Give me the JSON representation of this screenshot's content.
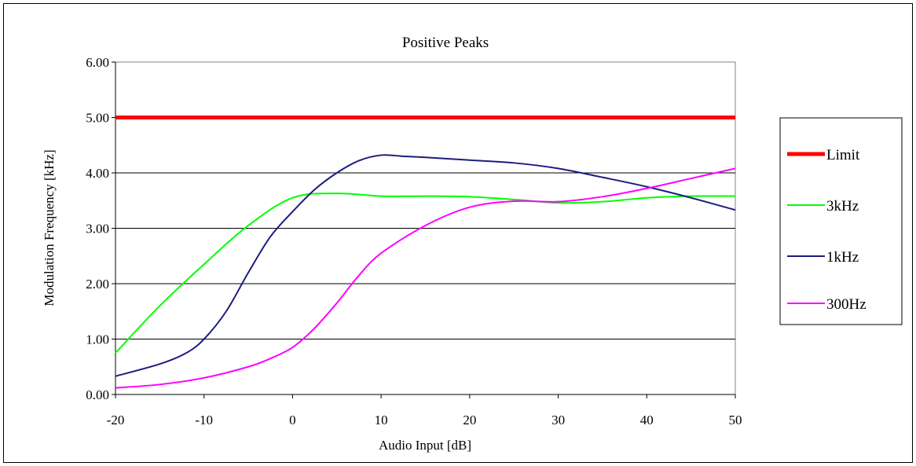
{
  "chart_data": {
    "type": "line",
    "title": "Positive Peaks",
    "xlabel": "Audio Input [dB]",
    "ylabel": "Modulation Frequency [kHz]",
    "xlim": [
      -20,
      50
    ],
    "ylim": [
      0,
      6
    ],
    "xticks": [
      -20,
      -10,
      0,
      10,
      20,
      30,
      40,
      50
    ],
    "yticks": [
      "0.00",
      "1.00",
      "2.00",
      "3.00",
      "4.00",
      "5.00",
      "6.00"
    ],
    "grid": "horizontal",
    "legend_position": "right",
    "series": [
      {
        "name": "Limit",
        "color": "#ff0000",
        "x": [
          -20,
          50
        ],
        "y": [
          5.0,
          5.0
        ]
      },
      {
        "name": "3kHz",
        "color": "#00ff00",
        "x": [
          -20,
          -15,
          -10,
          -5,
          0,
          5,
          10,
          15,
          20,
          25,
          30,
          35,
          40,
          45,
          50
        ],
        "y": [
          0.75,
          1.6,
          2.35,
          3.05,
          3.55,
          3.63,
          3.58,
          3.58,
          3.57,
          3.52,
          3.46,
          3.48,
          3.55,
          3.58,
          3.58
        ]
      },
      {
        "name": "1kHz",
        "color": "#1c1c80",
        "x": [
          -20,
          -15,
          -12,
          -10,
          -7.5,
          -5,
          -2.5,
          0,
          2.5,
          5,
          7.5,
          10,
          12.5,
          15,
          20,
          25,
          30,
          35,
          40,
          45,
          50
        ],
        "y": [
          0.33,
          0.55,
          0.75,
          1.0,
          1.5,
          2.2,
          2.85,
          3.3,
          3.7,
          4.0,
          4.22,
          4.32,
          4.3,
          4.28,
          4.23,
          4.18,
          4.08,
          3.92,
          3.75,
          3.55,
          3.33
        ]
      },
      {
        "name": "300Hz",
        "color": "#ff00ff",
        "x": [
          -20,
          -15,
          -10,
          -5,
          -2.5,
          0,
          2.5,
          5,
          7.5,
          10,
          15,
          20,
          25,
          30,
          35,
          40,
          45,
          50
        ],
        "y": [
          0.12,
          0.18,
          0.3,
          0.5,
          0.65,
          0.85,
          1.2,
          1.65,
          2.15,
          2.55,
          3.05,
          3.38,
          3.49,
          3.48,
          3.57,
          3.72,
          3.9,
          4.08
        ]
      }
    ]
  }
}
